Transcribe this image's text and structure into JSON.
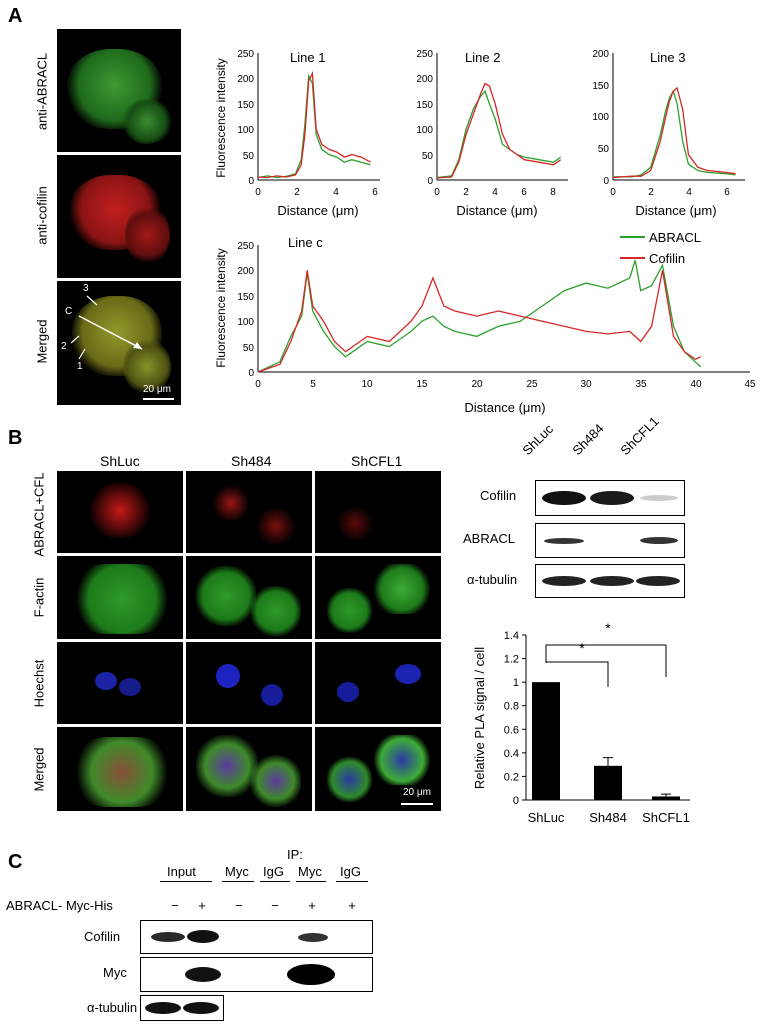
{
  "panels": {
    "a": "A",
    "b": "B",
    "c": "C"
  },
  "panel_a": {
    "row_labels": [
      "anti-ABRACL",
      "anti-cofilin",
      "Merged"
    ],
    "scale_bar": "20 μm",
    "annotations": [
      "3",
      "C",
      "2",
      "1"
    ],
    "charts": [
      {
        "title": "Line 1",
        "xlabel": "Distance (μm)",
        "ylabel": "Fluorescence intensity",
        "xticks": [
          "0",
          "2",
          "4",
          "6"
        ],
        "yticks": [
          "0",
          "50",
          "100",
          "150",
          "200",
          "250"
        ]
      },
      {
        "title": "Line 2",
        "xlabel": "Distance (μm)",
        "xticks": [
          "0",
          "2",
          "4",
          "6",
          "8"
        ],
        "yticks": [
          "0",
          "50",
          "100",
          "150",
          "200",
          "250"
        ]
      },
      {
        "title": "Line 3",
        "xlabel": "Distance (μm)",
        "xticks": [
          "0",
          "2",
          "4",
          "6"
        ],
        "yticks": [
          "0",
          "50",
          "100",
          "150",
          "200"
        ]
      },
      {
        "title": "Line c",
        "xlabel": "Distance (μm)",
        "ylabel": "Fluorescence intensity",
        "xticks": [
          "0",
          "5",
          "10",
          "15",
          "20",
          "25",
          "30",
          "35",
          "40",
          "45"
        ],
        "yticks": [
          "0",
          "50",
          "100",
          "150",
          "200",
          "250"
        ]
      }
    ],
    "legend": [
      "ABRACL",
      "Cofilin"
    ]
  },
  "panel_b": {
    "col_labels": [
      "ShLuc",
      "Sh484",
      "ShCFL1"
    ],
    "row_labels": [
      "ABRACL+CFL",
      "F-actin",
      "Hoechst",
      "Merged"
    ],
    "scale_bar": "20 μm",
    "blot_lanes": [
      "ShLuc",
      "Sh484",
      "ShCFL1"
    ],
    "blot_rows": [
      "Cofilin",
      "ABRACL",
      "α-tubulin"
    ],
    "bar_ylabel": "Relative PLA signal / cell",
    "bar_yticks": [
      "0",
      "0.2",
      "0.4",
      "0.6",
      "0.8",
      "1",
      "1.2",
      "1.4"
    ],
    "significance": [
      "*",
      "*"
    ]
  },
  "panel_c": {
    "ip_label": "IP:",
    "lane_groups": [
      "Input",
      "Myc",
      "IgG",
      "Myc",
      "IgG"
    ],
    "construct": "ABRACL- Myc-His",
    "signs": [
      "−",
      "+",
      "−",
      "−",
      "+",
      "+"
    ],
    "rows": [
      "Cofilin",
      "Myc",
      "α-tubulin"
    ]
  },
  "colors": {
    "abracl": "#2ca02c",
    "cofilin": "#d62728",
    "bar": "#000000"
  },
  "chart_data": [
    {
      "type": "line",
      "title": "Line 1",
      "xlabel": "Distance (μm)",
      "ylabel": "Fluorescence intensity",
      "xlim": [
        0,
        6.5
      ],
      "ylim": [
        0,
        250
      ],
      "x": [
        0,
        0.5,
        1,
        1.5,
        2,
        2.3,
        2.5,
        2.7,
        2.9,
        3.1,
        3.4,
        3.8,
        4.2,
        4.6,
        5,
        5.5,
        6
      ],
      "series": [
        {
          "name": "ABRACL",
          "values": [
            5,
            8,
            5,
            7,
            12,
            40,
            110,
            205,
            190,
            90,
            60,
            50,
            45,
            35,
            40,
            35,
            30
          ]
        },
        {
          "name": "Cofilin",
          "values": [
            6,
            5,
            8,
            6,
            10,
            30,
            90,
            195,
            210,
            100,
            70,
            60,
            55,
            45,
            50,
            45,
            35
          ]
        }
      ]
    },
    {
      "type": "line",
      "title": "Line 2",
      "xlabel": "Distance (μm)",
      "xlim": [
        0,
        9
      ],
      "ylim": [
        0,
        250
      ],
      "x": [
        0,
        1,
        1.5,
        2,
        2.5,
        3,
        3.3,
        3.6,
        4,
        4.5,
        5,
        5.5,
        6,
        7,
        8,
        8.5
      ],
      "series": [
        {
          "name": "ABRACL",
          "values": [
            5,
            8,
            40,
            100,
            140,
            165,
            175,
            150,
            120,
            70,
            60,
            50,
            45,
            40,
            35,
            45
          ]
        },
        {
          "name": "Cofilin",
          "values": [
            4,
            6,
            35,
            90,
            130,
            170,
            190,
            185,
            150,
            90,
            60,
            50,
            40,
            35,
            30,
            40
          ]
        }
      ]
    },
    {
      "type": "line",
      "title": "Line 3",
      "xlabel": "Distance (μm)",
      "xlim": [
        0,
        7
      ],
      "ylim": [
        0,
        200
      ],
      "x": [
        0,
        1,
        1.5,
        2,
        2.5,
        2.8,
        3,
        3.2,
        3.4,
        3.7,
        4,
        4.5,
        5,
        6,
        6.5
      ],
      "series": [
        {
          "name": "ABRACL",
          "values": [
            5,
            5,
            8,
            20,
            70,
            110,
            130,
            140,
            120,
            60,
            25,
            15,
            12,
            10,
            8
          ]
        },
        {
          "name": "Cofilin",
          "values": [
            4,
            6,
            6,
            15,
            60,
            100,
            125,
            140,
            145,
            110,
            40,
            20,
            15,
            12,
            10
          ]
        }
      ]
    },
    {
      "type": "line",
      "title": "Line c",
      "xlabel": "Distance (μm)",
      "ylabel": "Fluorescence intensity",
      "xlim": [
        0,
        45
      ],
      "ylim": [
        0,
        250
      ],
      "x": [
        0,
        2,
        3,
        4,
        4.5,
        5,
        6,
        7,
        8,
        10,
        12,
        14,
        15,
        16,
        17,
        18,
        20,
        22,
        24,
        26,
        28,
        30,
        32,
        34,
        34.5,
        35,
        36,
        37,
        38,
        39,
        40,
        40.5
      ],
      "series": [
        {
          "name": "ABRACL",
          "values": [
            0,
            20,
            70,
            110,
            195,
            120,
            80,
            50,
            30,
            60,
            50,
            80,
            100,
            110,
            90,
            80,
            70,
            90,
            100,
            130,
            160,
            175,
            165,
            185,
            220,
            160,
            170,
            210,
            90,
            40,
            20,
            10
          ]
        },
        {
          "name": "Cofilin",
          "values": [
            0,
            15,
            60,
            120,
            200,
            130,
            100,
            60,
            40,
            70,
            60,
            100,
            130,
            185,
            130,
            120,
            110,
            120,
            110,
            100,
            90,
            80,
            75,
            80,
            70,
            60,
            90,
            200,
            70,
            40,
            25,
            30
          ]
        }
      ]
    },
    {
      "type": "bar",
      "ylabel": "Relative PLA signal / cell",
      "categories": [
        "ShLuc",
        "Sh484",
        "ShCFL1"
      ],
      "values": [
        1,
        0.29,
        0.03
      ],
      "errors": [
        0,
        0.07,
        0.02
      ],
      "ylim": [
        0,
        1.4
      ]
    }
  ]
}
